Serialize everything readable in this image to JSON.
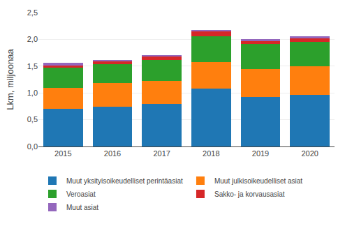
{
  "chart_data": {
    "type": "bar",
    "stacked": true,
    "categories": [
      "2015",
      "2016",
      "2017",
      "2018",
      "2019",
      "2020"
    ],
    "series": [
      {
        "name": "Muut yksityisoikeudelliset perintäasiat",
        "values": [
          0.7,
          0.74,
          0.8,
          1.08,
          0.93,
          0.97
        ]
      },
      {
        "name": "Muut julkisoikeudelliset asiat",
        "values": [
          0.4,
          0.44,
          0.43,
          0.5,
          0.52,
          0.53
        ]
      },
      {
        "name": "Veroasiat",
        "values": [
          0.37,
          0.36,
          0.39,
          0.475,
          0.465,
          0.455
        ]
      },
      {
        "name": "Sakko- ja korvausasiat",
        "values": [
          0.04,
          0.055,
          0.065,
          0.1,
          0.06,
          0.068
        ]
      },
      {
        "name": "Muut asiat",
        "values": [
          0.05,
          0.02,
          0.02,
          0.02,
          0.025,
          0.03
        ]
      }
    ],
    "ylabel": "Lkm, miljoonaa",
    "ylim": [
      0,
      2.5
    ],
    "yticks": [
      {
        "value": 0.0,
        "label": "0,0"
      },
      {
        "value": 0.5,
        "label": "0,5"
      },
      {
        "value": 1.0,
        "label": "1,0"
      },
      {
        "value": 1.5,
        "label": "1,5"
      },
      {
        "value": 2.0,
        "label": "2,0"
      },
      {
        "value": 2.5,
        "label": "2,5"
      }
    ],
    "grid": true,
    "legend": "bottom"
  }
}
